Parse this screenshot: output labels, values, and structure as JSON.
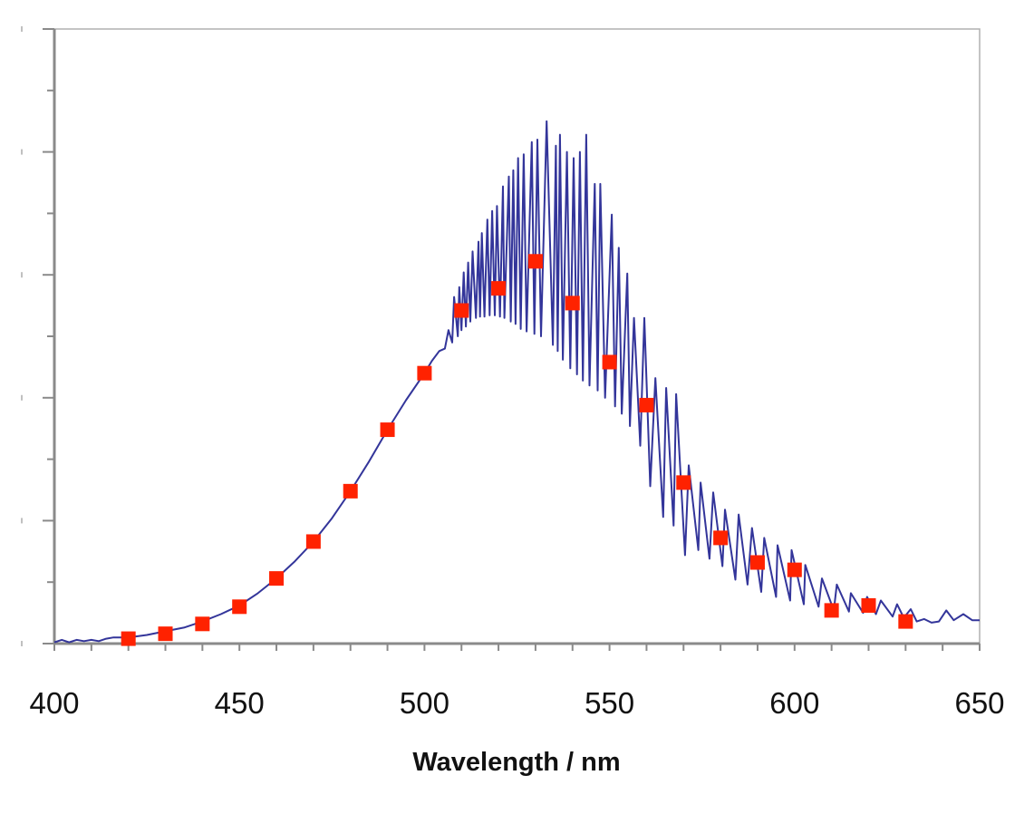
{
  "chart_data": {
    "type": "line",
    "title": "",
    "xlabel": "Wavelength / nm",
    "ylabel": "",
    "xlim": [
      400,
      650
    ],
    "xticks": [
      "400",
      "450",
      "500",
      "550",
      "600",
      "650"
    ],
    "ylim": [
      0,
      5
    ],
    "yticks_labeled": false,
    "grid": false,
    "legend": "none",
    "colors": {
      "line": "#33359a",
      "markers": "#ff2200",
      "axis": "#8a8a8a"
    },
    "series": [
      {
        "type": "line",
        "points": [
          [
            400,
            0.01
          ],
          [
            402,
            0.03
          ],
          [
            404,
            0.01
          ],
          [
            406,
            0.03
          ],
          [
            408,
            0.02
          ],
          [
            410,
            0.03
          ],
          [
            412,
            0.02
          ],
          [
            414,
            0.04
          ],
          [
            416,
            0.05
          ],
          [
            420,
            0.05
          ],
          [
            425,
            0.07
          ],
          [
            430,
            0.1
          ],
          [
            435,
            0.13
          ],
          [
            440,
            0.18
          ],
          [
            445,
            0.24
          ],
          [
            450,
            0.31
          ],
          [
            455,
            0.41
          ],
          [
            460,
            0.53
          ],
          [
            465,
            0.67
          ],
          [
            470,
            0.83
          ],
          [
            475,
            1.02
          ],
          [
            480,
            1.24
          ],
          [
            485,
            1.48
          ],
          [
            490,
            1.74
          ],
          [
            495,
            1.98
          ],
          [
            500,
            2.2
          ],
          [
            502,
            2.3
          ],
          [
            504,
            2.38
          ],
          [
            505.5,
            2.4
          ],
          [
            506.5,
            2.55
          ],
          [
            507.5,
            2.45
          ],
          [
            508,
            2.82
          ],
          [
            509,
            2.5
          ],
          [
            509.4,
            2.9
          ],
          [
            510,
            2.55
          ],
          [
            510.6,
            3.02
          ],
          [
            511.2,
            2.58
          ],
          [
            511.8,
            3.1
          ],
          [
            512.4,
            2.62
          ],
          [
            513,
            3.19
          ],
          [
            513.9,
            2.65
          ],
          [
            514.6,
            3.27
          ],
          [
            515,
            2.66
          ],
          [
            515.5,
            3.34
          ],
          [
            516.2,
            2.66
          ],
          [
            517,
            3.45
          ],
          [
            517.6,
            2.67
          ],
          [
            518.3,
            3.52
          ],
          [
            519,
            2.67
          ],
          [
            519.6,
            3.56
          ],
          [
            520.4,
            2.66
          ],
          [
            521.2,
            3.72
          ],
          [
            521.6,
            2.65
          ],
          [
            522.8,
            3.8
          ],
          [
            523.3,
            2.62
          ],
          [
            524,
            3.85
          ],
          [
            524.6,
            2.6
          ],
          [
            525.3,
            3.95
          ],
          [
            526,
            2.56
          ],
          [
            526.8,
            3.98
          ],
          [
            527.6,
            2.54
          ],
          [
            529,
            4.08
          ],
          [
            529.7,
            2.52
          ],
          [
            530.5,
            4.1
          ],
          [
            531.5,
            2.5
          ],
          [
            533,
            4.25
          ],
          [
            534.7,
            2.43
          ],
          [
            535.5,
            4.05
          ],
          [
            536,
            2.38
          ],
          [
            536.6,
            4.14
          ],
          [
            537.4,
            2.31
          ],
          [
            538.5,
            4.0
          ],
          [
            539.4,
            2.24
          ],
          [
            540.3,
            3.95
          ],
          [
            541.2,
            2.19
          ],
          [
            542,
            4.0
          ],
          [
            542.8,
            2.14
          ],
          [
            543.7,
            4.14
          ],
          [
            544.6,
            2.1
          ],
          [
            546,
            3.74
          ],
          [
            546.8,
            2.06
          ],
          [
            547.5,
            3.74
          ],
          [
            548.8,
            2.0
          ],
          [
            550.6,
            3.49
          ],
          [
            551.5,
            1.93
          ],
          [
            552.5,
            3.22
          ],
          [
            553.3,
            1.87
          ],
          [
            554.8,
            3.01
          ],
          [
            555.5,
            1.77
          ],
          [
            556.6,
            2.65
          ],
          [
            558.3,
            1.61
          ],
          [
            559.4,
            2.65
          ],
          [
            561,
            1.28
          ],
          [
            562.4,
            2.16
          ],
          [
            564.5,
            1.03
          ],
          [
            565.3,
            2.08
          ],
          [
            567.3,
            0.96
          ],
          [
            568,
            2.03
          ],
          [
            570.4,
            0.72
          ],
          [
            571.4,
            1.45
          ],
          [
            574,
            0.76
          ],
          [
            574.6,
            1.31
          ],
          [
            577,
            0.69
          ],
          [
            578,
            1.23
          ],
          [
            580.5,
            0.63
          ],
          [
            581.2,
            1.09
          ],
          [
            584,
            0.52
          ],
          [
            584.9,
            1.05
          ],
          [
            587.3,
            0.48
          ],
          [
            588.5,
            0.94
          ],
          [
            591,
            0.42
          ],
          [
            591.8,
            0.86
          ],
          [
            595,
            0.38
          ],
          [
            595.4,
            0.8
          ],
          [
            598.8,
            0.35
          ],
          [
            599.2,
            0.76
          ],
          [
            602.5,
            0.32
          ],
          [
            602.9,
            0.64
          ],
          [
            606.5,
            0.3
          ],
          [
            607.4,
            0.53
          ],
          [
            610.6,
            0.27
          ],
          [
            611.4,
            0.48
          ],
          [
            614.7,
            0.26
          ],
          [
            615.2,
            0.41
          ],
          [
            618.5,
            0.25
          ],
          [
            619.6,
            0.38
          ],
          [
            622,
            0.24
          ],
          [
            623.3,
            0.35
          ],
          [
            626.5,
            0.22
          ],
          [
            627.7,
            0.32
          ],
          [
            629.5,
            0.21
          ],
          [
            631.4,
            0.28
          ],
          [
            633,
            0.18
          ],
          [
            635,
            0.2
          ],
          [
            637,
            0.17
          ],
          [
            639,
            0.18
          ],
          [
            641,
            0.27
          ],
          [
            643,
            0.19
          ],
          [
            645.6,
            0.24
          ],
          [
            648,
            0.19
          ],
          [
            650,
            0.19
          ]
        ]
      },
      {
        "type": "scatter",
        "marker": "square",
        "x": [
          420,
          430,
          440,
          450,
          460,
          470,
          480,
          490,
          500,
          510,
          520,
          530,
          540,
          550,
          560,
          570,
          580,
          590,
          600,
          610,
          620,
          630
        ],
        "y": [
          0.04,
          0.08,
          0.16,
          0.3,
          0.53,
          0.83,
          1.24,
          1.74,
          2.2,
          2.71,
          2.89,
          3.11,
          2.77,
          2.29,
          1.94,
          1.31,
          0.86,
          0.66,
          0.6,
          0.27,
          0.31,
          0.18
        ]
      }
    ]
  }
}
